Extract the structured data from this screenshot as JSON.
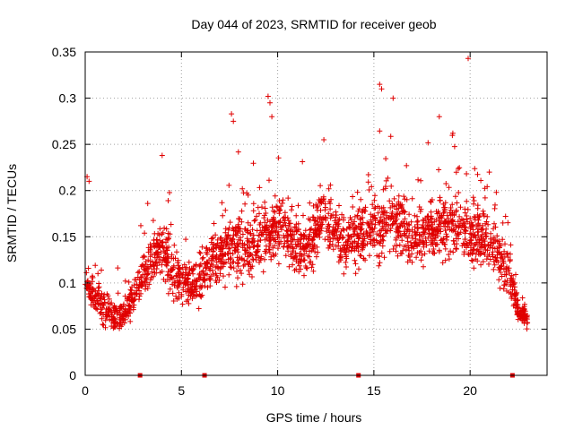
{
  "chart_data": {
    "type": "scatter",
    "title": "Day 044 of 2023, SRMTID for receiver geob",
    "xlabel": "GPS time / hours",
    "ylabel": "SRMTID / TECUs",
    "xlim": [
      0,
      24
    ],
    "ylim": [
      0,
      0.35
    ],
    "x_ticks": [
      0,
      5,
      10,
      15,
      20
    ],
    "x_tick_labels": [
      "0",
      "5",
      "10",
      "15",
      "20"
    ],
    "y_ticks": [
      0,
      0.05,
      0.1,
      0.15,
      0.2,
      0.25,
      0.3,
      0.35
    ],
    "y_tick_labels": [
      "0",
      "0.05",
      "0.1",
      "0.15",
      "0.2",
      "0.25",
      "0.3",
      "0.35"
    ],
    "grid": true,
    "marker": "+",
    "color": "#e00000",
    "data_gaps_hours": [
      2.85,
      6.2,
      14.2,
      22.2
    ],
    "series": [
      {
        "name": "SRMTID",
        "envelope_hours": [
          0.0,
          0.5,
          1.0,
          1.5,
          2.0,
          2.5,
          3.0,
          3.5,
          4.0,
          4.5,
          5.0,
          5.5,
          6.0,
          6.5,
          7.0,
          7.5,
          8.0,
          8.5,
          9.0,
          9.5,
          10.0,
          10.5,
          11.0,
          11.5,
          12.0,
          12.5,
          13.0,
          13.5,
          14.0,
          14.5,
          15.0,
          15.5,
          16.0,
          16.5,
          17.0,
          17.5,
          18.0,
          18.5,
          19.0,
          19.5,
          20.0,
          20.5,
          21.0,
          21.5,
          22.0,
          22.5,
          23.0
        ],
        "median": [
          0.095,
          0.085,
          0.07,
          0.065,
          0.065,
          0.085,
          0.11,
          0.13,
          0.14,
          0.11,
          0.1,
          0.1,
          0.105,
          0.125,
          0.13,
          0.135,
          0.14,
          0.14,
          0.145,
          0.155,
          0.16,
          0.15,
          0.14,
          0.14,
          0.16,
          0.165,
          0.15,
          0.14,
          0.145,
          0.155,
          0.16,
          0.165,
          0.17,
          0.16,
          0.15,
          0.15,
          0.155,
          0.16,
          0.165,
          0.16,
          0.155,
          0.15,
          0.145,
          0.13,
          0.11,
          0.07,
          0.06
        ],
        "spread": [
          0.03,
          0.025,
          0.025,
          0.025,
          0.025,
          0.03,
          0.035,
          0.04,
          0.045,
          0.04,
          0.035,
          0.035,
          0.035,
          0.04,
          0.045,
          0.05,
          0.05,
          0.045,
          0.05,
          0.05,
          0.05,
          0.045,
          0.045,
          0.045,
          0.05,
          0.05,
          0.045,
          0.045,
          0.045,
          0.05,
          0.055,
          0.055,
          0.05,
          0.05,
          0.045,
          0.045,
          0.045,
          0.05,
          0.05,
          0.05,
          0.05,
          0.045,
          0.045,
          0.04,
          0.035,
          0.015,
          0.012
        ],
        "max_value": 0.343,
        "notable_points": [
          {
            "x": 0.1,
            "y": 0.215
          },
          {
            "x": 0.2,
            "y": 0.21
          },
          {
            "x": 4.0,
            "y": 0.238
          },
          {
            "x": 7.6,
            "y": 0.283
          },
          {
            "x": 7.7,
            "y": 0.275
          },
          {
            "x": 9.5,
            "y": 0.302
          },
          {
            "x": 9.6,
            "y": 0.295
          },
          {
            "x": 9.7,
            "y": 0.28
          },
          {
            "x": 12.4,
            "y": 0.255
          },
          {
            "x": 15.3,
            "y": 0.315
          },
          {
            "x": 15.4,
            "y": 0.31
          },
          {
            "x": 16.0,
            "y": 0.3
          },
          {
            "x": 18.4,
            "y": 0.28
          },
          {
            "x": 19.1,
            "y": 0.262
          },
          {
            "x": 19.9,
            "y": 0.343
          },
          {
            "x": 21.0,
            "y": 0.22
          }
        ]
      }
    ]
  }
}
